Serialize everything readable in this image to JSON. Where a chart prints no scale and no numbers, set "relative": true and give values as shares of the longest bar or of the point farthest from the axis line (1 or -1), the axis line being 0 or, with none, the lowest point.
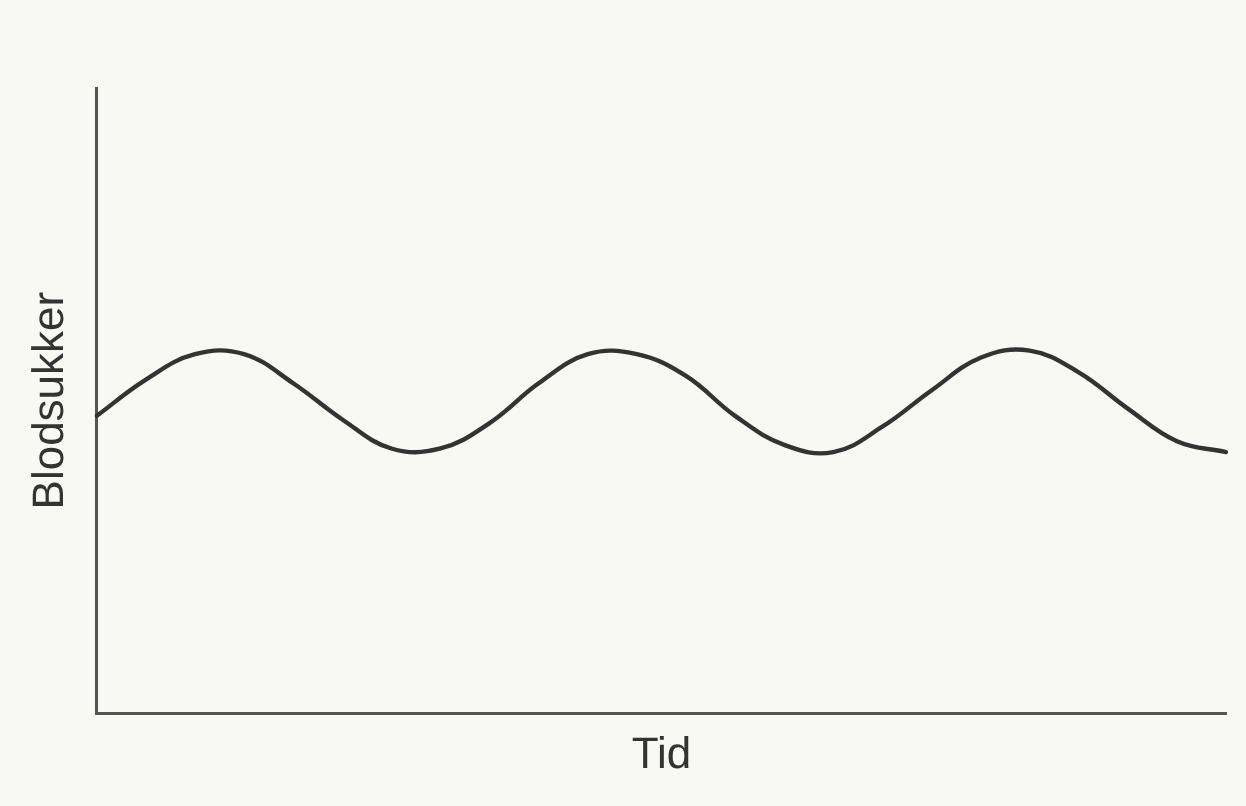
{
  "chart_data": {
    "type": "line",
    "xlabel": "Tid",
    "ylabel": "Blodsukker",
    "relative": true,
    "grid": false,
    "legend": false,
    "marker": "none",
    "line_style": "solid",
    "categories": [
      null,
      null,
      null,
      null,
      null,
      null,
      null,
      null,
      null,
      null,
      null,
      null,
      null,
      null,
      null,
      null,
      null,
      null,
      null,
      null,
      null,
      null,
      null,
      null
    ],
    "series": [
      {
        "color": "#333333",
        "values": [
          0.82,
          0.92,
          0.99,
          0.99,
          0.91,
          0.81,
          0.73,
          0.73,
          0.8,
          0.91,
          0.99,
          0.99,
          0.93,
          0.82,
          0.74,
          0.72,
          0.79,
          0.89,
          0.98,
          1,
          0.94,
          0.84,
          0.75,
          0.72
        ]
      }
    ]
  }
}
